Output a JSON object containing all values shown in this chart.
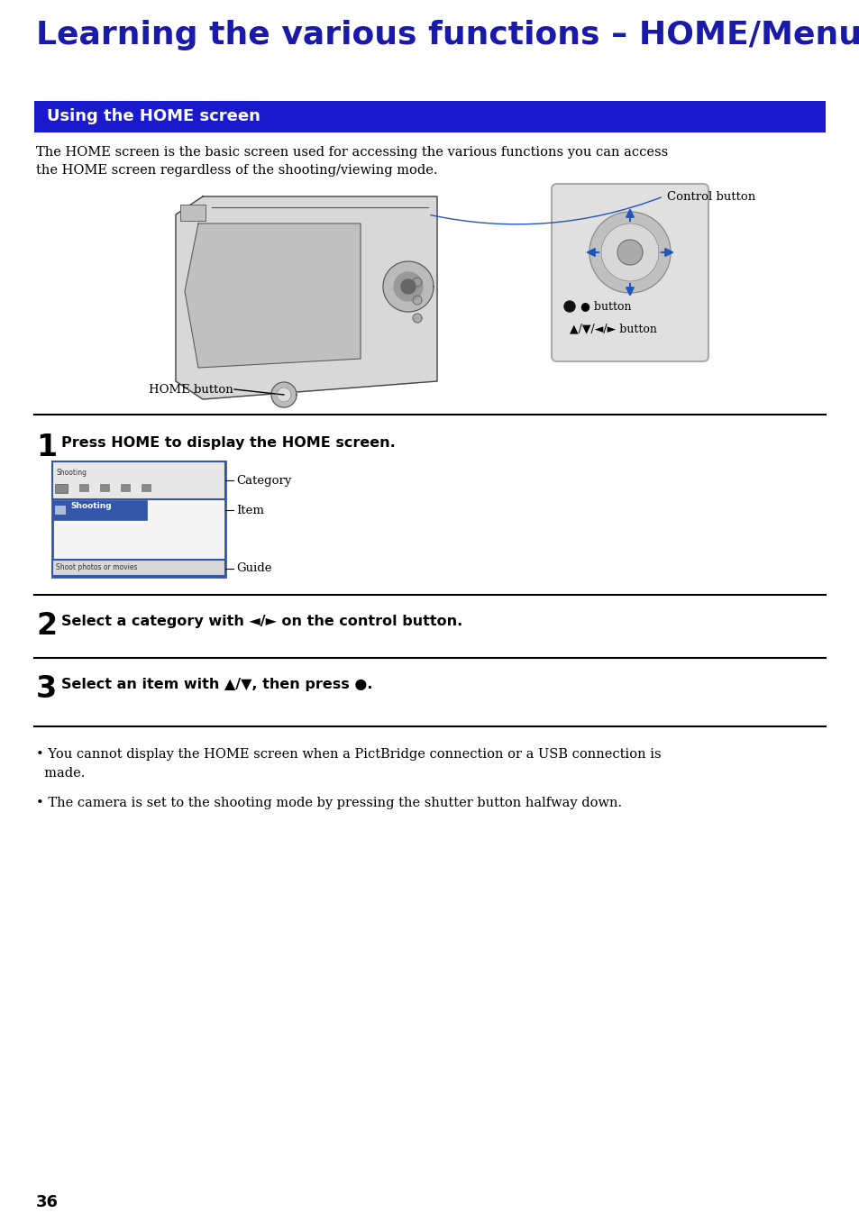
{
  "title": "Learning the various functions – HOME/Menu",
  "title_color": "#1a1aaa",
  "title_fontsize": 26,
  "section_bg_color": "#1a1acc",
  "section_text": "Using the HOME screen",
  "section_text_color": "#FFFFFF",
  "section_fontsize": 13,
  "body_text1": "The HOME screen is the basic screen used for accessing the various functions you can access\nthe HOME screen regardless of the shooting/viewing mode.",
  "body_fontsize": 10.5,
  "step1_text": "Press HOME to display the HOME screen.",
  "step2_text": "Select a category with ◄/► on the control button.",
  "step3_text": "Select an item with ▲/▼, then press ●.",
  "step_num_fontsize": 24,
  "step_text_fontsize": 11.5,
  "label_control": "Control button",
  "label_home": "HOME button",
  "label_category": "Category",
  "label_item": "Item",
  "label_guide": "Guide",
  "label_bullet_button": "● button",
  "label_arrow_button": "▲/▼/◄/► button",
  "bullet1": "You cannot display the HOME screen when a PictBridge connection or a USB connection is\n  made.",
  "bullet2": "The camera is set to the shooting mode by pressing the shutter button halfway down.",
  "page_number": "36",
  "bg_color": "#FFFFFF",
  "line_color": "#000000",
  "blue_arrow_color": "#2255BB",
  "dark_blue": "#1a1aaa",
  "section_bar_color": "#1a1acc"
}
